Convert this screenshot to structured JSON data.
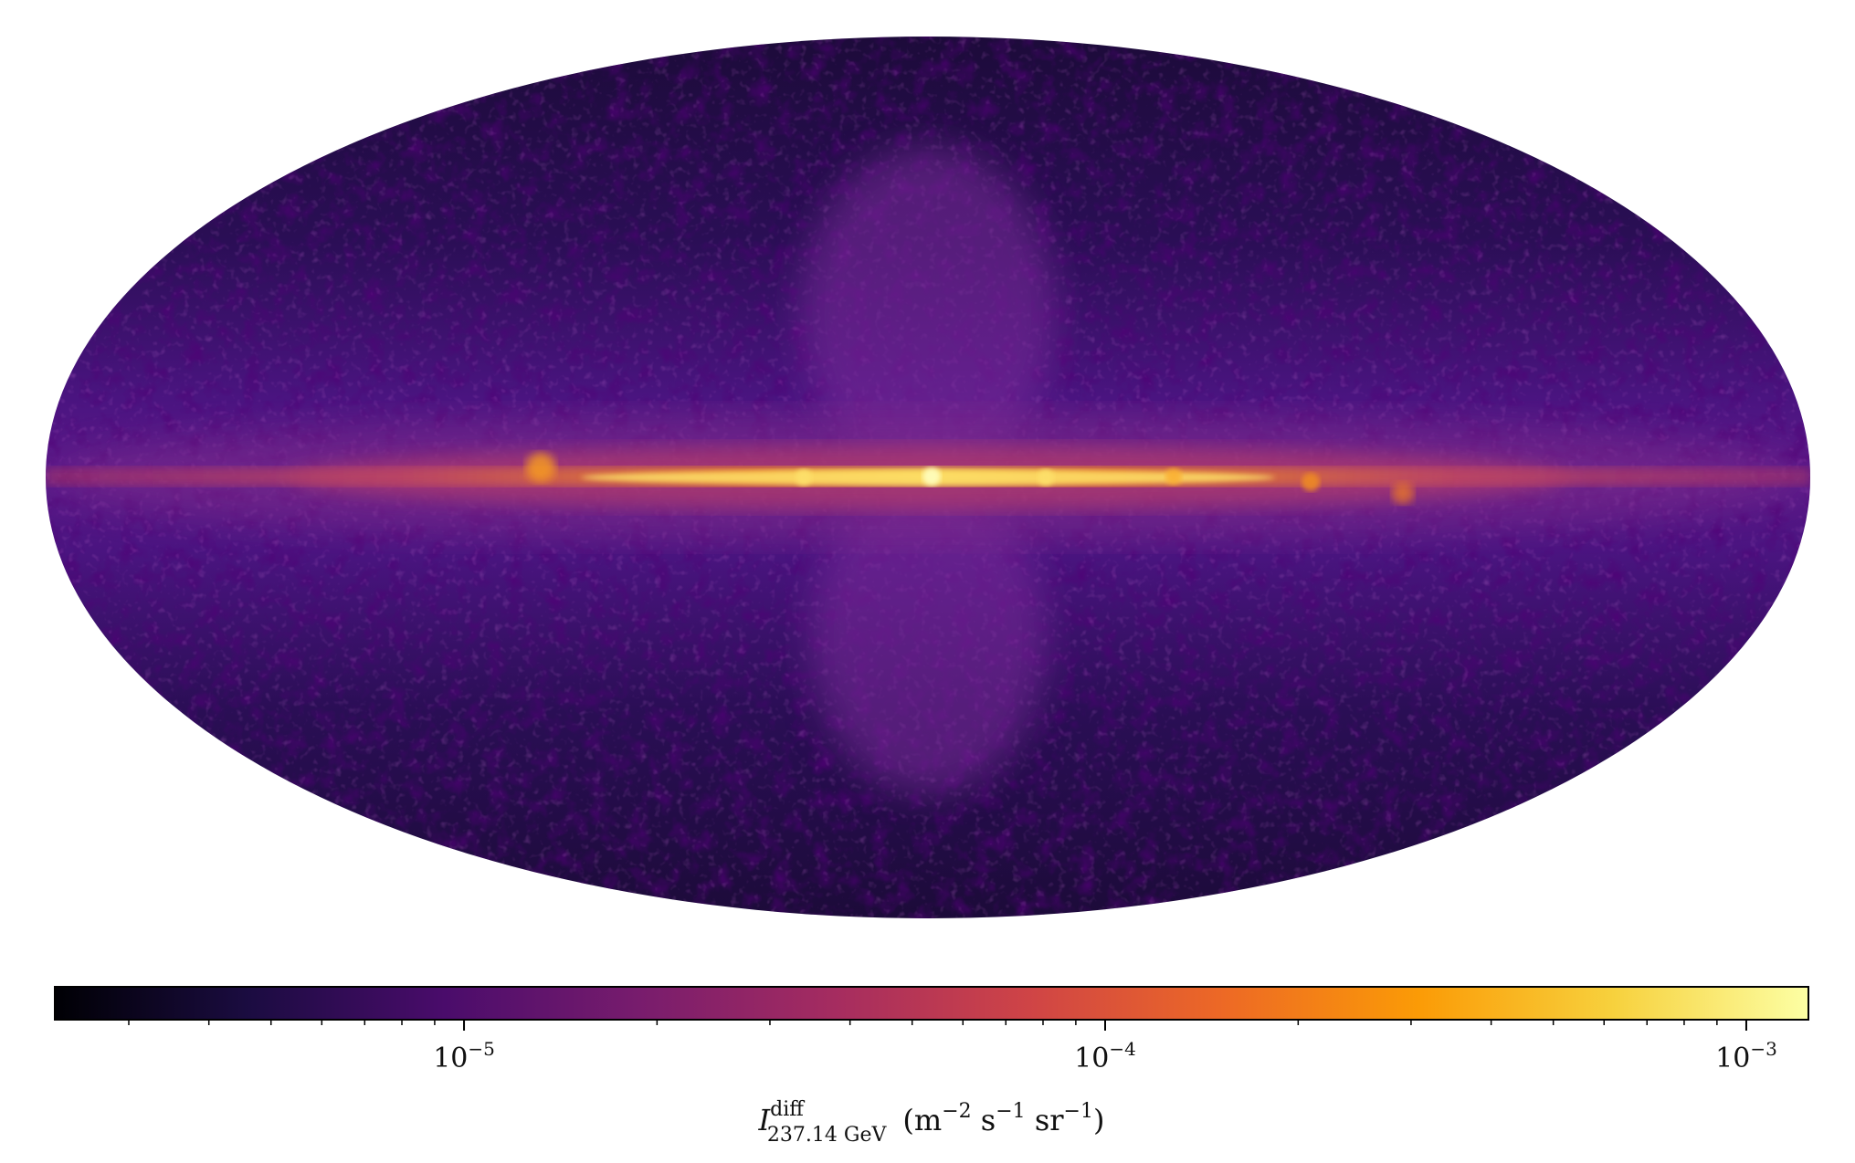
{
  "chart_data": {
    "type": "heatmap",
    "projection": "mollweide",
    "coordinate_system": "galactic",
    "colormap": "inferno",
    "scale": "log",
    "color_range": [
      2.3e-06,
      0.00125
    ],
    "colormap_stops": [
      "#000004",
      "#1b0c41",
      "#4a0c6b",
      "#781c6d",
      "#a52c60",
      "#cf4446",
      "#ed6925",
      "#fb9b06",
      "#f7d13d",
      "#fcffa4"
    ],
    "colorbar": {
      "orientation": "horizontal",
      "major_ticks": [
        {
          "value": 1e-05,
          "base": "10",
          "exponent": "−5"
        },
        {
          "value": 0.0001,
          "base": "10",
          "exponent": "−4"
        },
        {
          "value": 0.001,
          "base": "10",
          "exponent": "−3"
        }
      ],
      "label": {
        "symbol": "I",
        "superscript": "diff",
        "subscript": "237.14 GeV",
        "units_open": "(m",
        "exp1": "−2",
        "mid1": " s",
        "exp2": "−1",
        "mid2": " sr",
        "exp3": "−1",
        "units_close": ")"
      }
    },
    "features": {
      "galactic_plane_peak": 0.001,
      "bubble_lobes": 4e-05,
      "high_latitude_background": 5e-06
    }
  }
}
